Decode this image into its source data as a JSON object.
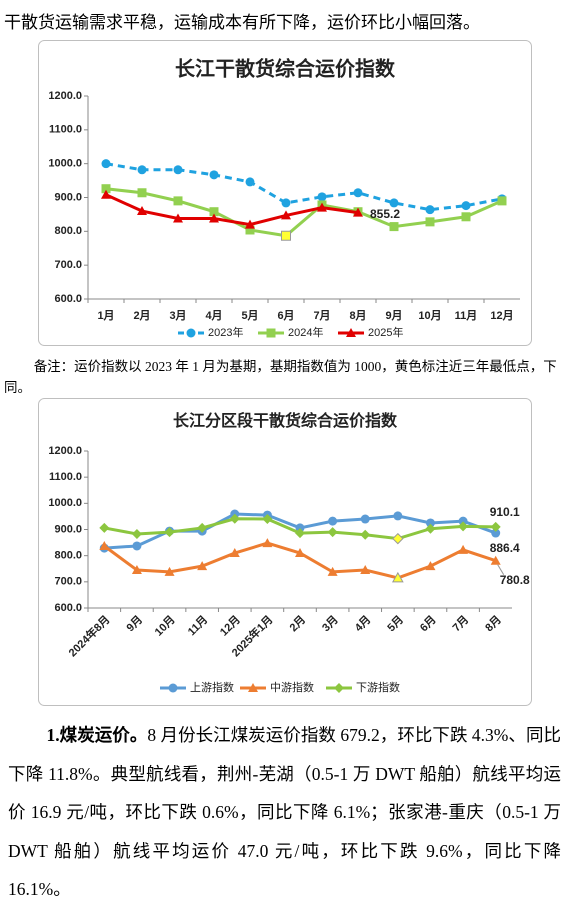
{
  "intro": "干散货运输需求平稳，运输成本有所下降，运价环比小幅回落。",
  "note": "备注：运价指数以 2023 年 1 月为基期，基期指数值为 1000，黄色标注近三年最低点，下同。",
  "paragraph": {
    "lead": "1.煤炭运价。",
    "text": "8 月份长江煤炭运价指数 679.2，环比下跌 4.3%、同比下降 11.8%。典型航线看，荆州-芜湖（0.5-1 万 DWT 船舶）航线平均运价 16.9 元/吨，环比下跌 0.6%，同比下降 6.1%；张家港-重庆（0.5-1 万 DWT 船舶）航线平均运价 47.0 元/吨，环比下跌 9.6%，同比下降 16.1%。"
  },
  "chart_data": [
    {
      "type": "line",
      "title": "长江干散货综合运价指数",
      "categories": [
        "1月",
        "2月",
        "3月",
        "4月",
        "5月",
        "6月",
        "7月",
        "8月",
        "9月",
        "10月",
        "11月",
        "12月"
      ],
      "ylim": [
        600,
        1200
      ],
      "yticks": [
        {
          "value": 600,
          "label": "600.0"
        },
        {
          "value": 700,
          "label": "700.0"
        },
        {
          "value": 800,
          "label": "800.0"
        },
        {
          "value": 900,
          "label": "900.0"
        },
        {
          "value": 1000,
          "label": "1000.0"
        },
        {
          "value": 1100,
          "label": "1100.0"
        },
        {
          "value": 1200,
          "label": "1200.0"
        }
      ],
      "highlight_color": "#ffff33",
      "series": [
        {
          "name": "2023年",
          "color": "#1fa2e0",
          "dash": true,
          "marker": "circle",
          "values": [
            1000,
            982,
            982,
            967,
            946,
            884,
            902,
            914,
            884,
            864,
            876,
            896
          ]
        },
        {
          "name": "2024年",
          "color": "#92d050",
          "marker": "square",
          "lowest": 5,
          "values": [
            926,
            914,
            890,
            858,
            804,
            787,
            878,
            858,
            814,
            828,
            843,
            890
          ]
        },
        {
          "name": "2025年",
          "color": "#e00000",
          "marker": "triangle",
          "label_index": 7,
          "values": [
            908,
            860,
            838,
            838,
            820,
            847,
            870,
            855.2,
            null,
            null,
            null,
            null
          ]
        }
      ]
    },
    {
      "type": "line",
      "title": "长江分区段干散货综合运价指数",
      "categories": [
        "2024年8月",
        "9月",
        "10月",
        "11月",
        "12月",
        "2025年1月",
        "2月",
        "3月",
        "4月",
        "5月",
        "6月",
        "7月",
        "8月"
      ],
      "ylim": [
        600,
        1200
      ],
      "yticks": [
        {
          "value": 600,
          "label": "600.0"
        },
        {
          "value": 700,
          "label": "700.0"
        },
        {
          "value": 800,
          "label": "800.0"
        },
        {
          "value": 900,
          "label": "900.0"
        },
        {
          "value": 1000,
          "label": "1000.0"
        },
        {
          "value": 1100,
          "label": "1100.0"
        },
        {
          "value": 1200,
          "label": "1200.0"
        }
      ],
      "highlight_color": "#ffff33",
      "series": [
        {
          "name": "上游指数",
          "color": "#5b9bd5",
          "marker": "circle",
          "label_index": 12,
          "values": [
            829,
            837,
            894,
            894,
            959,
            955,
            906,
            932,
            940,
            952,
            925,
            932,
            886.4
          ]
        },
        {
          "name": "中游指数",
          "color": "#ed7d31",
          "marker": "triangle",
          "lowest": 9,
          "label_index": 12,
          "values": [
            837,
            745,
            738,
            760,
            810,
            848,
            810,
            738,
            745,
            715,
            760,
            822,
            780.8
          ]
        },
        {
          "name": "下游指数",
          "color": "#8cc63f",
          "marker": "diamond",
          "lowest": 9,
          "label_index": 12,
          "values": [
            906,
            883,
            890,
            906,
            941,
            940,
            886,
            890,
            880,
            865,
            903,
            912,
            910.1
          ]
        }
      ]
    }
  ]
}
